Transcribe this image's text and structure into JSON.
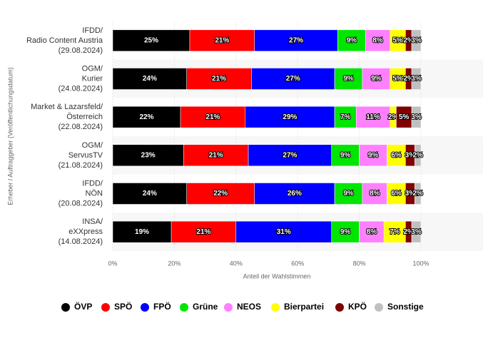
{
  "chart_data": {
    "type": "stacked_bar_horizontal",
    "categories": [
      "IFDD/\nRadio Content Austria\n(29.08.2024)",
      "OGM/\nKurier\n(24.08.2024)",
      "Market & Lazarsfeld/\nÖsterreich\n(22.08.2024)",
      "OGM/\nServusTV\n(21.08.2024)",
      "IFDD/\nNÖN\n(20.08.2024)",
      "INSA/\neXXpress\n(14.08.2024)"
    ],
    "series": [
      {
        "name": "ÖVP",
        "color": "#000000",
        "values": [
          25,
          24,
          22,
          23,
          24,
          19
        ],
        "value_labels": [
          "25%",
          "24%",
          "22%",
          "23%",
          "24%",
          "19%"
        ]
      },
      {
        "name": "SPÖ",
        "color": "#ff0000",
        "values": [
          21,
          21,
          21,
          21,
          22,
          21
        ],
        "value_labels": [
          "21%",
          "21%",
          "21%",
          "21%",
          "22%",
          "21%"
        ]
      },
      {
        "name": "FPÖ",
        "color": "#0000ff",
        "values": [
          27,
          27,
          29,
          27,
          26,
          31
        ],
        "value_labels": [
          "27%",
          "27%",
          "29%",
          "27%",
          "26%",
          "31%"
        ]
      },
      {
        "name": "Grüne",
        "color": "#00e600",
        "values": [
          9,
          9,
          7,
          9,
          9,
          9
        ],
        "value_labels": [
          "9%",
          "9%",
          "7%",
          "9%",
          "9%",
          "9%"
        ]
      },
      {
        "name": "NEOS",
        "color": "#ff80ff",
        "values": [
          8,
          9,
          11,
          9,
          8,
          8
        ],
        "value_labels": [
          "8%",
          "9%",
          "11%",
          "9%",
          "8%",
          "8%"
        ]
      },
      {
        "name": "Bierpartei",
        "color": "#ffff00",
        "values": [
          5,
          5,
          2,
          6,
          6,
          7
        ],
        "value_labels": [
          "5%",
          "5%",
          "2%",
          "6%",
          "6%",
          "7%"
        ]
      },
      {
        "name": "KPÖ",
        "color": "#800000",
        "values": [
          2,
          2,
          5,
          3,
          3,
          2
        ],
        "value_labels": [
          "2%",
          "2%",
          "5%",
          "3%",
          "3%",
          "2%"
        ]
      },
      {
        "name": "Sonstige",
        "color": "#c0c0c0",
        "values": [
          3,
          3,
          3,
          2,
          2,
          3
        ],
        "value_labels": [
          "3%",
          "3%",
          "3%",
          "2%",
          "2%",
          "3%"
        ]
      }
    ],
    "x_label": "Anteil der Wahlstimmen",
    "y_label": "Erheber / Auftraggeber (Veröffentlichungsdatum)",
    "xlim": [
      0,
      100
    ],
    "xticks": [
      {
        "value": 0,
        "label": "0%"
      },
      {
        "value": 20,
        "label": "20%"
      },
      {
        "value": 40,
        "label": "40%"
      },
      {
        "value": 60,
        "label": "60%"
      },
      {
        "value": 80,
        "label": "80%"
      },
      {
        "value": 100,
        "label": "100%"
      }
    ],
    "grid": true,
    "legend": "bottom"
  }
}
